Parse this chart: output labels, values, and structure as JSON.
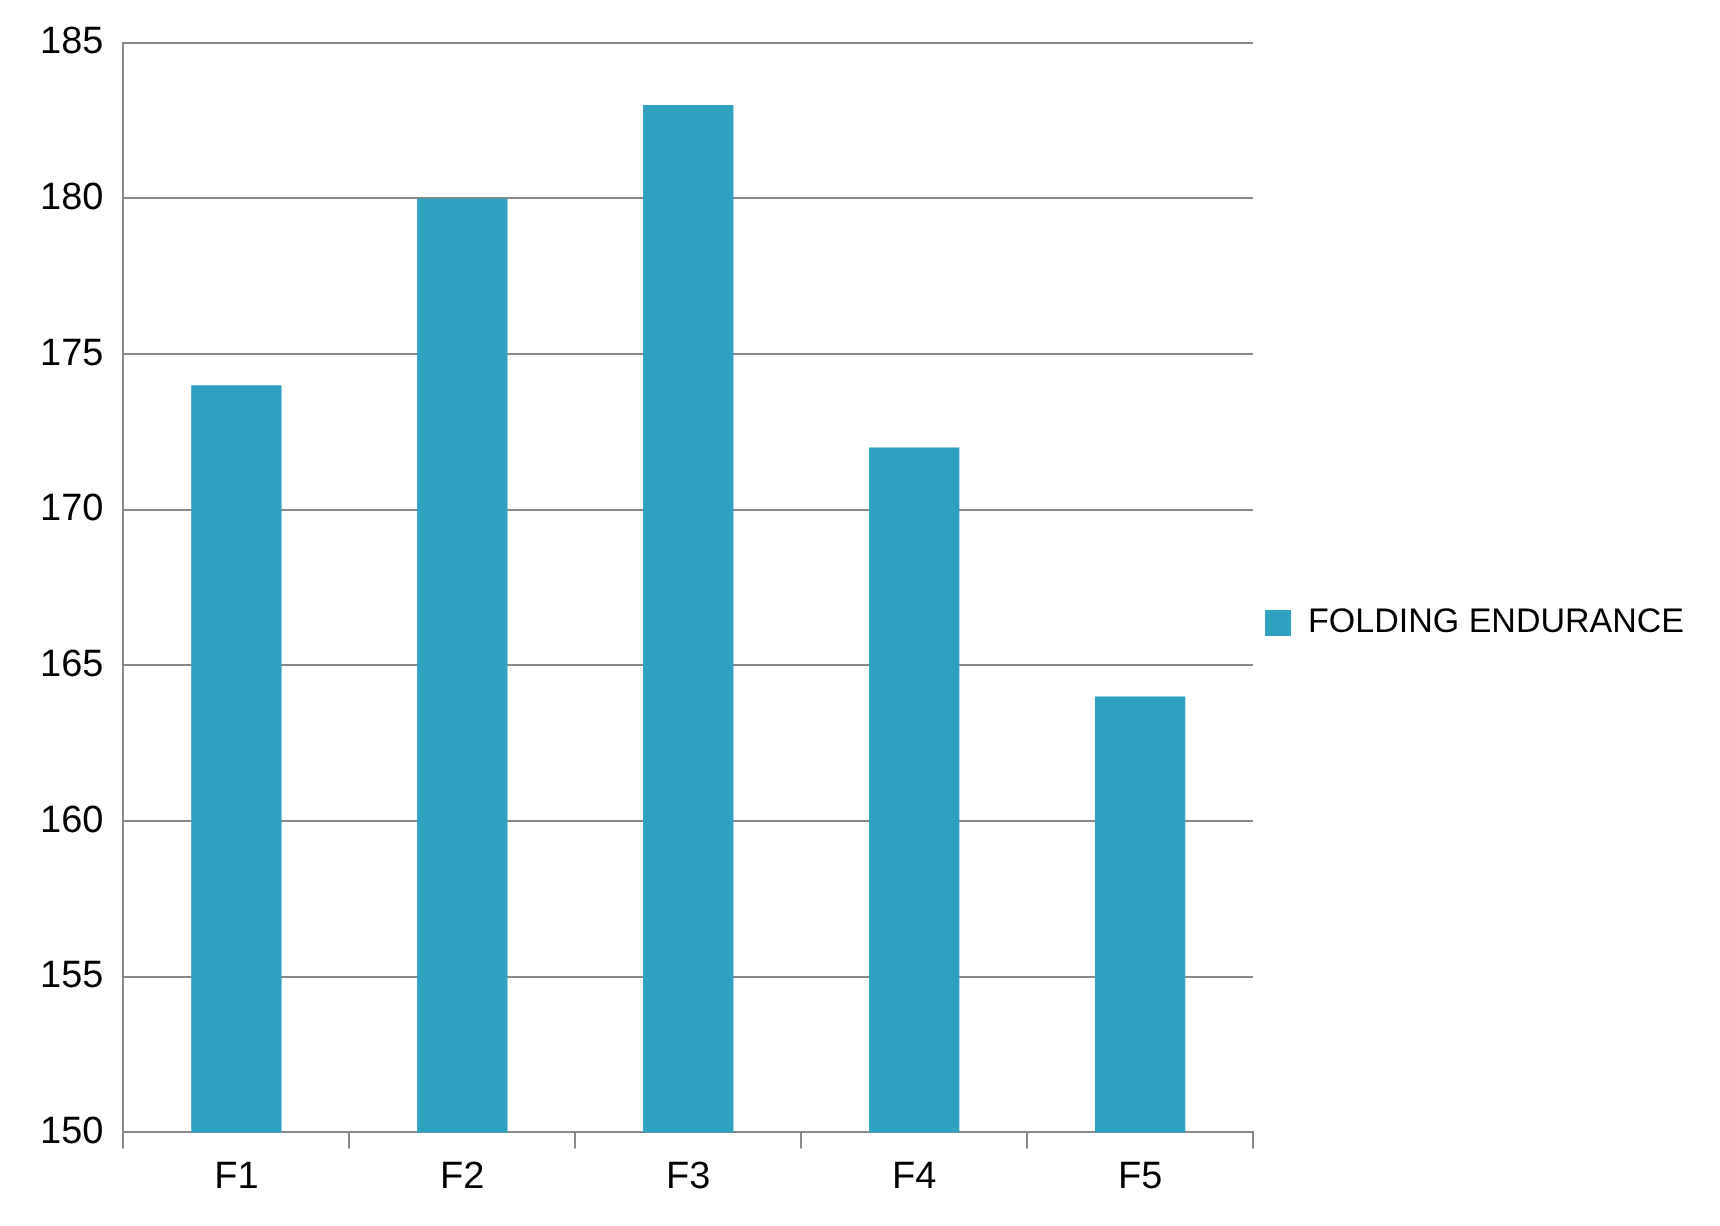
{
  "chart_data": {
    "type": "bar",
    "categories": [
      "F1",
      "F2",
      "F3",
      "F4",
      "F5"
    ],
    "series": [
      {
        "name": "FOLDING ENDURANCE",
        "color": "#2fa2c2",
        "values": [
          174,
          180,
          183,
          172,
          164
        ]
      }
    ],
    "ylim": [
      150,
      185
    ],
    "yticks": [
      150,
      155,
      160,
      165,
      170,
      175,
      180,
      185
    ],
    "grid": "y",
    "legend": "right"
  }
}
